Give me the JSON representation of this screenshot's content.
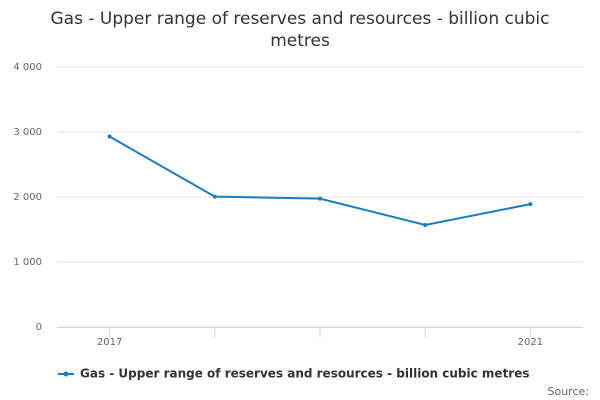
{
  "chart_data": {
    "type": "line",
    "title": "Gas - Upper range of reserves and resources - billion cubic metres",
    "categories": [
      "2017",
      null,
      null,
      null,
      "2021"
    ],
    "series": [
      {
        "name": "Gas - Upper range of reserves and resources - billion cubic metres",
        "color": "#1a7dc0",
        "values": [
          2930,
          2005,
          1975,
          1570,
          1890
        ]
      }
    ],
    "ylim": [
      0,
      4000
    ],
    "yticks": [
      0,
      {
        "value": 1000,
        "label": "1 000"
      },
      {
        "value": 2000,
        "label": "2 000"
      },
      {
        "value": 3000,
        "label": "3 000"
      },
      {
        "value": 4000,
        "label": "4 000"
      }
    ],
    "grid": true,
    "legend": "bottom",
    "source": "Source:"
  }
}
